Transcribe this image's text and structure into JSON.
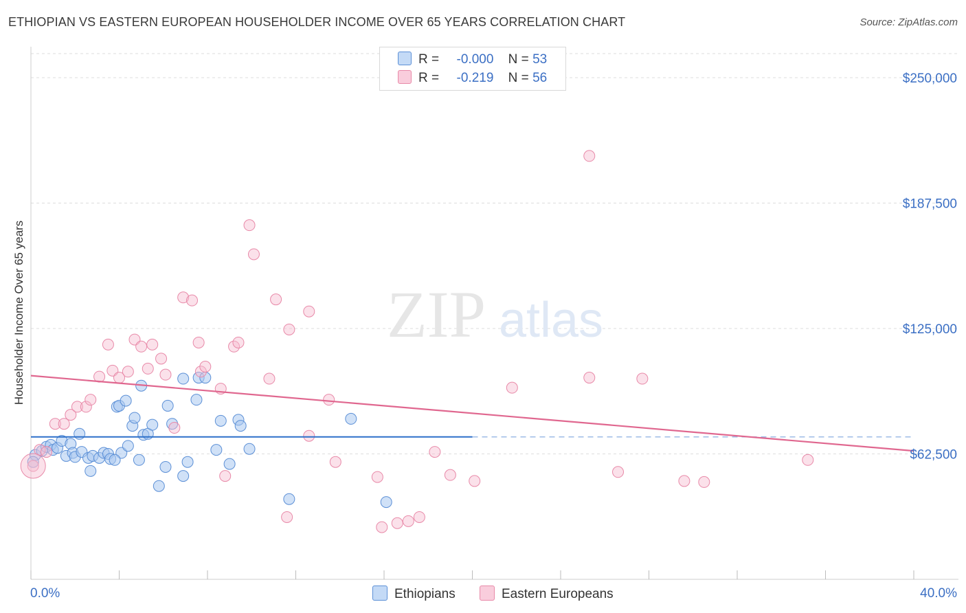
{
  "header": {
    "title": "ETHIOPIAN VS EASTERN EUROPEAN HOUSEHOLDER INCOME OVER 65 YEARS CORRELATION CHART",
    "source": "Source: ZipAtlas.com"
  },
  "watermark": {
    "zip": "ZIP",
    "atlas": "atlas"
  },
  "legend": {
    "r_label": "R =",
    "n_label": "N =",
    "ethiopian": {
      "r": "-0.000",
      "n": "53"
    },
    "eastern": {
      "r": "-0.219",
      "n": "56"
    }
  },
  "colors": {
    "ethiopian_fill": "#a9c8f0",
    "ethiopian_stroke": "#5b8fd6",
    "ethiopian_line": "#2c6fc9",
    "eastern_fill": "#f6bdd0",
    "eastern_stroke": "#e889a8",
    "eastern_line": "#e0678f",
    "tick_label": "#3b6fc4",
    "grid": "#dddddd"
  },
  "chart_data": {
    "type": "scatter",
    "title": "ETHIOPIAN VS EASTERN EUROPEAN HOUSEHOLDER INCOME OVER 65 YEARS CORRELATION CHART",
    "xlabel": "",
    "ylabel": "Householder Income Over 65 years",
    "xlim": [
      0,
      40
    ],
    "ylim": [
      0,
      262000
    ],
    "x_tick_labels": [
      "0.0%",
      "40.0%"
    ],
    "y_ticks": [
      62500,
      125000,
      187500,
      250000
    ],
    "y_tick_labels": [
      "$62,500",
      "$125,000",
      "$187,500",
      "$250,000"
    ],
    "grid": true,
    "legend_position": "top-center",
    "series": [
      {
        "name": "Ethiopians",
        "r": -0.0,
        "n": 53,
        "trend": {
          "x": [
            0,
            20
          ],
          "y": [
            71000,
            71000
          ],
          "dashed_extension_to": 40
        },
        "points": [
          [
            0.2,
            62000
          ],
          [
            0.5,
            64000
          ],
          [
            0.7,
            66000
          ],
          [
            0.9,
            67000
          ],
          [
            1.0,
            64500
          ],
          [
            1.2,
            65500
          ],
          [
            1.4,
            69000
          ],
          [
            1.6,
            61500
          ],
          [
            1.8,
            67500
          ],
          [
            1.9,
            63000
          ],
          [
            2.0,
            61000
          ],
          [
            2.2,
            72500
          ],
          [
            2.3,
            63500
          ],
          [
            2.6,
            60500
          ],
          [
            2.7,
            54000
          ],
          [
            2.8,
            61500
          ],
          [
            3.1,
            60500
          ],
          [
            3.3,
            63000
          ],
          [
            3.5,
            62500
          ],
          [
            3.6,
            60000
          ],
          [
            3.9,
            86000
          ],
          [
            4.0,
            86500
          ],
          [
            4.1,
            63000
          ],
          [
            4.3,
            89000
          ],
          [
            4.4,
            66500
          ],
          [
            4.6,
            76500
          ],
          [
            4.7,
            80500
          ],
          [
            4.9,
            59500
          ],
          [
            5.0,
            96500
          ],
          [
            5.1,
            72000
          ],
          [
            5.3,
            72500
          ],
          [
            5.5,
            77000
          ],
          [
            5.8,
            46500
          ],
          [
            6.1,
            56000
          ],
          [
            6.2,
            86500
          ],
          [
            6.4,
            77500
          ],
          [
            6.9,
            100000
          ],
          [
            6.9,
            51500
          ],
          [
            7.1,
            58500
          ],
          [
            7.5,
            89500
          ],
          [
            7.6,
            100500
          ],
          [
            7.9,
            100500
          ],
          [
            8.4,
            64500
          ],
          [
            8.6,
            79000
          ],
          [
            9.0,
            57500
          ],
          [
            9.4,
            79500
          ],
          [
            9.5,
            76500
          ],
          [
            9.9,
            65000
          ],
          [
            11.7,
            40000
          ],
          [
            14.5,
            80000
          ],
          [
            16.1,
            38500
          ],
          [
            0.1,
            58500
          ],
          [
            3.8,
            59500
          ]
        ]
      },
      {
        "name": "Eastern Europeans",
        "r": -0.219,
        "n": 56,
        "trend": {
          "x": [
            0,
            40
          ],
          "y": [
            101500,
            64000
          ]
        },
        "points": [
          [
            0.1,
            56500
          ],
          [
            0.4,
            64500
          ],
          [
            0.7,
            63500
          ],
          [
            1.1,
            77500
          ],
          [
            1.5,
            77500
          ],
          [
            1.8,
            82000
          ],
          [
            2.1,
            86000
          ],
          [
            2.5,
            86000
          ],
          [
            2.7,
            89500
          ],
          [
            3.1,
            101000
          ],
          [
            3.5,
            117000
          ],
          [
            3.7,
            104000
          ],
          [
            4.0,
            100500
          ],
          [
            4.4,
            103500
          ],
          [
            4.7,
            119500
          ],
          [
            5.0,
            116000
          ],
          [
            5.3,
            105000
          ],
          [
            5.5,
            117000
          ],
          [
            5.9,
            110000
          ],
          [
            6.1,
            102000
          ],
          [
            6.5,
            75500
          ],
          [
            6.9,
            140500
          ],
          [
            7.3,
            139000
          ],
          [
            7.6,
            118000
          ],
          [
            7.7,
            103500
          ],
          [
            7.9,
            106000
          ],
          [
            8.6,
            95000
          ],
          [
            8.8,
            51500
          ],
          [
            9.2,
            116000
          ],
          [
            9.4,
            118000
          ],
          [
            9.9,
            176500
          ],
          [
            10.1,
            162000
          ],
          [
            10.8,
            100000
          ],
          [
            11.1,
            139500
          ],
          [
            11.6,
            31000
          ],
          [
            11.7,
            124500
          ],
          [
            12.6,
            71500
          ],
          [
            12.6,
            133500
          ],
          [
            13.5,
            89500
          ],
          [
            13.8,
            58500
          ],
          [
            15.7,
            51000
          ],
          [
            15.9,
            26000
          ],
          [
            16.6,
            28000
          ],
          [
            17.1,
            29000
          ],
          [
            17.6,
            31000
          ],
          [
            18.3,
            63500
          ],
          [
            19.0,
            52000
          ],
          [
            20.1,
            49000
          ],
          [
            21.8,
            95500
          ],
          [
            25.3,
            100500
          ],
          [
            26.6,
            53500
          ],
          [
            27.7,
            100000
          ],
          [
            29.6,
            49000
          ],
          [
            30.5,
            48500
          ],
          [
            35.2,
            59500
          ],
          [
            25.3,
            211000
          ]
        ]
      }
    ]
  }
}
